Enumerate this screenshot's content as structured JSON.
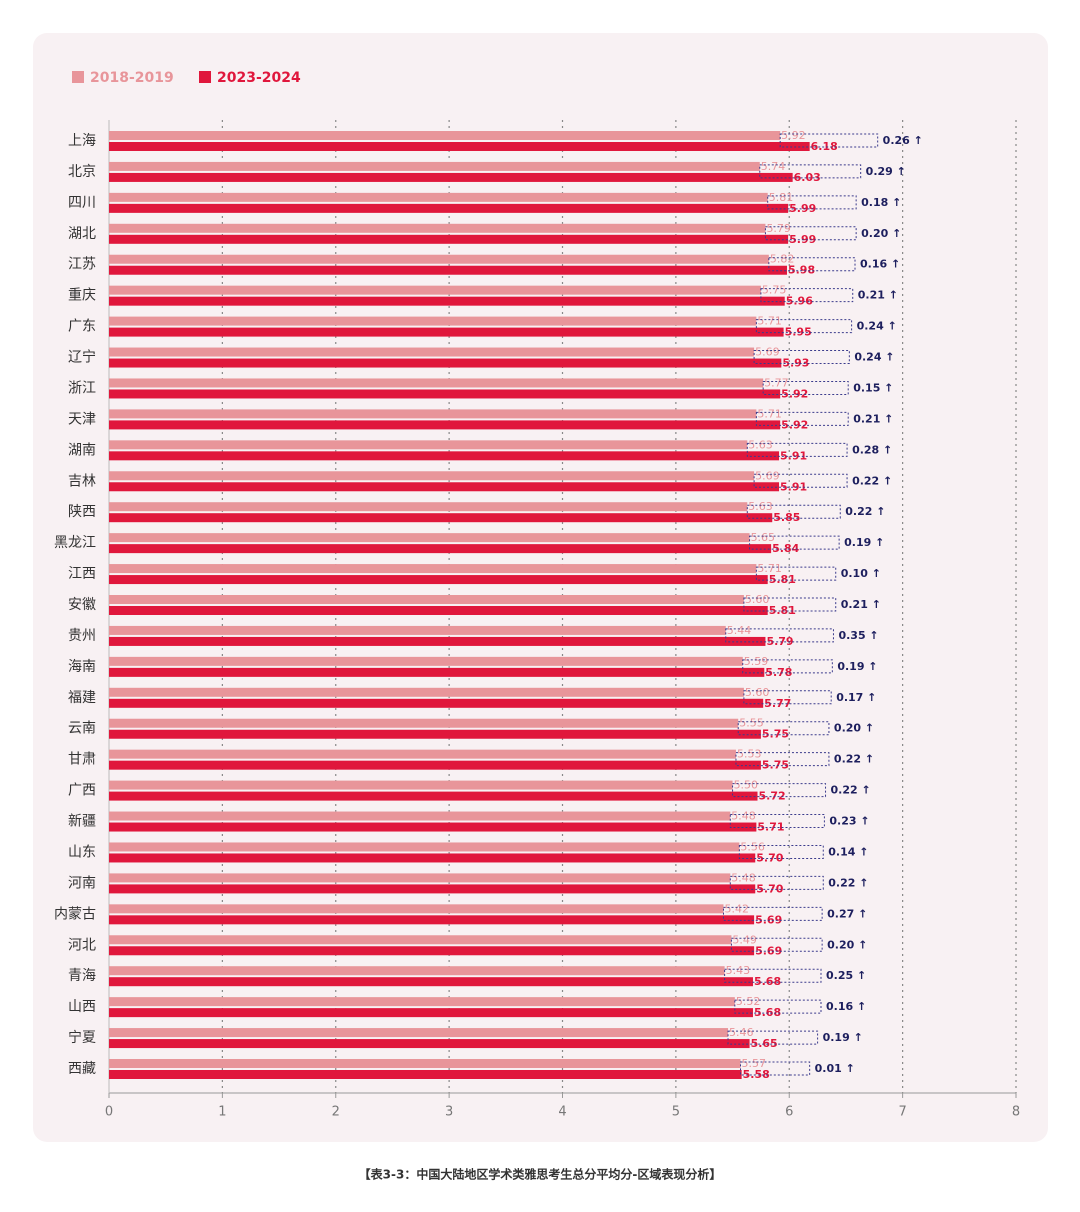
{
  "chart_data": {
    "type": "grouped-hbar",
    "caption": "【表3-3：中国大陆地区学术类雅思考生总分平均分-区域表现分析】",
    "categories": [
      "上海",
      "北京",
      "四川",
      "湖北",
      "江苏",
      "重庆",
      "广东",
      "辽宁",
      "浙江",
      "天津",
      "湖南",
      "吉林",
      "陕西",
      "黑龙江",
      "江西",
      "安徽",
      "贵州",
      "海南",
      "福建",
      "云南",
      "甘肃",
      "广西",
      "新疆",
      "山东",
      "河南",
      "内蒙古",
      "河北",
      "青海",
      "山西",
      "宁夏",
      "西藏"
    ],
    "series": [
      {
        "name": "2018-2019",
        "color": "#e8959a",
        "values": [
          5.92,
          5.74,
          5.81,
          5.79,
          5.82,
          5.75,
          5.71,
          5.69,
          5.77,
          5.71,
          5.63,
          5.69,
          5.63,
          5.65,
          5.71,
          5.6,
          5.44,
          5.59,
          5.6,
          5.55,
          5.53,
          5.5,
          5.48,
          5.56,
          5.48,
          5.42,
          5.49,
          5.43,
          5.52,
          5.46,
          5.57
        ],
        "value_labels": [
          "5.92",
          "5.74",
          "5.81",
          "5.79",
          "5.82",
          "5.75",
          "5.71",
          "5.69",
          "5.77",
          "5.71",
          "5.63",
          "5.69",
          "5.63",
          "5.65",
          "5.71",
          "5.60",
          "5.44",
          "5.59",
          "5.60",
          "5.55",
          "5.53",
          "5.50",
          "5.48",
          "5.56",
          "5.48",
          "5.42",
          "5.49",
          "5.43",
          "5.52",
          "5.46",
          "5.57"
        ]
      },
      {
        "name": "2023-2024",
        "color": "#e0173c",
        "values": [
          6.18,
          6.03,
          5.99,
          5.99,
          5.98,
          5.96,
          5.95,
          5.93,
          5.92,
          5.92,
          5.91,
          5.91,
          5.85,
          5.84,
          5.81,
          5.81,
          5.79,
          5.78,
          5.77,
          5.75,
          5.75,
          5.72,
          5.71,
          5.7,
          5.7,
          5.69,
          5.69,
          5.68,
          5.68,
          5.65,
          5.58
        ],
        "value_labels": [
          "6.18",
          "6.03",
          "5.99",
          "5.99",
          "5.98",
          "5.96",
          "5.95",
          "5.93",
          "5.92",
          "5.92",
          "5.91",
          "5.91",
          "5.85",
          "5.84",
          "5.81",
          "5.81",
          "5.79",
          "5.78",
          "5.77",
          "5.75",
          "5.75",
          "5.72",
          "5.71",
          "5.70",
          "5.70",
          "5.69",
          "5.69",
          "5.68",
          "5.68",
          "5.65",
          "5.58"
        ]
      }
    ],
    "difference": {
      "color": "#1d1f5e",
      "values": [
        0.26,
        0.29,
        0.18,
        0.2,
        0.16,
        0.21,
        0.24,
        0.24,
        0.15,
        0.21,
        0.28,
        0.22,
        0.22,
        0.19,
        0.1,
        0.21,
        0.35,
        0.19,
        0.17,
        0.2,
        0.22,
        0.22,
        0.23,
        0.14,
        0.22,
        0.27,
        0.2,
        0.25,
        0.16,
        0.19,
        0.01
      ],
      "value_labels": [
        "0.26 ↑",
        "0.29 ↑",
        "0.18 ↑",
        "0.20 ↑",
        "0.16 ↑",
        "0.21 ↑",
        "0.24 ↑",
        "0.24 ↑",
        "0.15 ↑",
        "0.21 ↑",
        "0.28 ↑",
        "0.22 ↑",
        "0.22 ↑",
        "0.19 ↑",
        "0.10 ↑",
        "0.21 ↑",
        "0.35 ↑",
        "0.19 ↑",
        "0.17 ↑",
        "0.20 ↑",
        "0.22 ↑",
        "0.22 ↑",
        "0.23 ↑",
        "0.14 ↑",
        "0.22 ↑",
        "0.27 ↑",
        "0.20 ↑",
        "0.25 ↑",
        "0.16 ↑",
        "0.19 ↑",
        "0.01 ↑"
      ]
    },
    "xlim": [
      0,
      8
    ],
    "xticks": [
      0,
      1,
      2,
      3,
      4,
      5,
      6,
      7,
      8
    ],
    "grid": true
  }
}
